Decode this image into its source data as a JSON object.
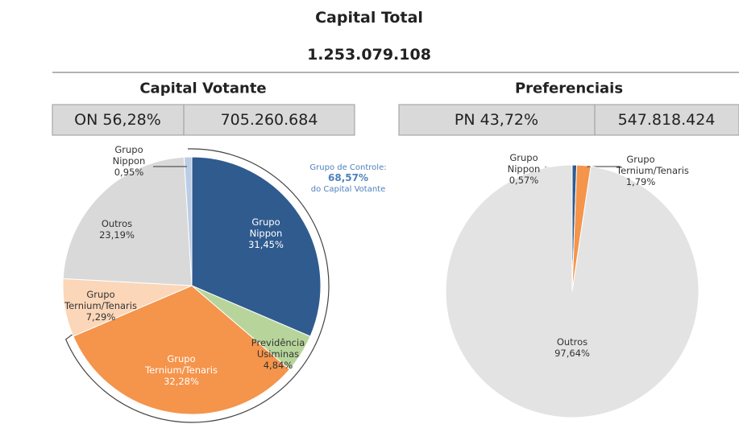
{
  "header": {
    "title": "Capital Total",
    "total": "1.253.079.108"
  },
  "chart_data": [
    {
      "type": "pie",
      "title": "Capital Votante",
      "share_label": "ON 56,28%",
      "share_amount": "705.260.684",
      "categories": [
        "Grupo Nippon",
        "Previdência Usiminas",
        "Grupo Ternium/Tenaris",
        "Grupo Ternium/Tenaris",
        "Outros",
        "Grupo Nippon"
      ],
      "values": [
        31.45,
        4.84,
        32.28,
        7.29,
        23.19,
        0.95
      ],
      "value_labels": [
        "31,45%",
        "4,84%",
        "32,28%",
        "7,29%",
        "23,19%",
        "0,95%"
      ],
      "colors": [
        "#2f5b8f",
        "#b7d59b",
        "#f5944b",
        "#fbd6b8",
        "#d9d9d9",
        "#b9cde6"
      ],
      "annotation": {
        "title": "Grupo de Controle:",
        "value": "68,57%",
        "text": "do Capital Votante"
      }
    },
    {
      "type": "pie",
      "title": "Preferenciais",
      "share_label": "PN 43,72%",
      "share_amount": "547.818.424",
      "categories": [
        "Grupo Nippon",
        "Grupo Ternium/Tenaris",
        "Outros"
      ],
      "values": [
        0.57,
        1.79,
        97.64
      ],
      "value_labels": [
        "0,57%",
        "1,79%",
        "97,64%"
      ],
      "colors": [
        "#2f5b8f",
        "#f5944b",
        "#e3e3e3"
      ]
    }
  ]
}
